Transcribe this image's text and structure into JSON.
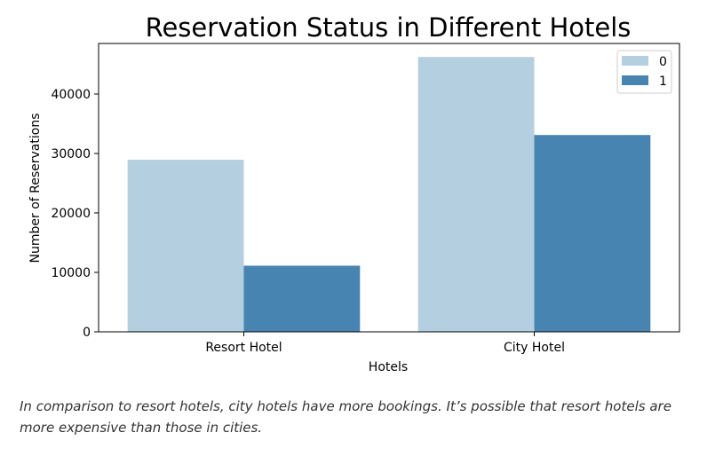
{
  "chart_data": {
    "type": "bar",
    "title": "Reservation Status in Different Hotels",
    "xlabel": "Hotels",
    "ylabel": "Number of Reservations",
    "categories": [
      "Resort Hotel",
      "City Hotel"
    ],
    "series": [
      {
        "name": "0",
        "values": [
          28938,
          46228
        ],
        "color": "#b3cfe0"
      },
      {
        "name": "1",
        "values": [
          11122,
          33102
        ],
        "color": "#4884b1"
      }
    ],
    "ylim": [
      0,
      48500
    ],
    "yticks": [
      0,
      10000,
      20000,
      30000,
      40000
    ],
    "ytick_labels": [
      "0",
      "10000",
      "20000",
      "30000",
      "40000"
    ],
    "grid": false,
    "legend_position": "top-right"
  },
  "caption": "In comparison to resort hotels, city hotels have more bookings. It’s possible that resort hotels are more expensive than those in cities."
}
